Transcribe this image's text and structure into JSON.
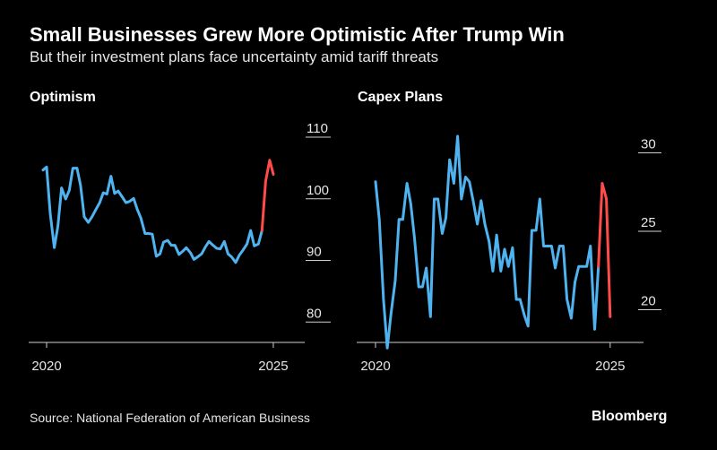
{
  "header": {
    "title": "Small Businesses Grew More Optimistic After Trump Win",
    "subtitle": "But their investment plans face uncertainty amid tariff threats"
  },
  "footer": {
    "source": "Source: National Federation of American Business",
    "brand": "Bloomberg"
  },
  "colors": {
    "before": "#4fb3f0",
    "after": "#ff4b4b",
    "axis": "#cfcfcf"
  },
  "chart_data": [
    {
      "type": "line",
      "title": "Optimism",
      "xlabel": "",
      "ylabel": "",
      "xlim": [
        2020.0,
        2025.08
      ],
      "ylim": [
        78,
        110
      ],
      "yticks": [
        110,
        100,
        90,
        80
      ],
      "xticks": [
        "2020",
        "2025"
      ],
      "grid": false,
      "series": [
        {
          "color": "before",
          "values": [
            [
              2019.92,
              103.5
            ],
            [
              2020.0,
              104.0
            ],
            [
              2020.08,
              96.5
            ],
            [
              2020.17,
              90.9
            ],
            [
              2020.25,
              94.4
            ],
            [
              2020.33,
              100.6
            ],
            [
              2020.42,
              98.8
            ],
            [
              2020.5,
              100.2
            ],
            [
              2020.58,
              103.8
            ],
            [
              2020.67,
              103.8
            ],
            [
              2020.75,
              101.0
            ],
            [
              2020.83,
              95.9
            ],
            [
              2020.92,
              95.0
            ],
            [
              2021.0,
              95.9
            ],
            [
              2021.08,
              97.0
            ],
            [
              2021.17,
              98.2
            ],
            [
              2021.25,
              99.8
            ],
            [
              2021.33,
              99.6
            ],
            [
              2021.42,
              102.5
            ],
            [
              2021.5,
              99.7
            ],
            [
              2021.58,
              100.1
            ],
            [
              2021.67,
              99.1
            ],
            [
              2021.75,
              98.2
            ],
            [
              2021.83,
              98.4
            ],
            [
              2021.92,
              98.9
            ],
            [
              2022.0,
              97.1
            ],
            [
              2022.08,
              95.7
            ],
            [
              2022.17,
              93.2
            ],
            [
              2022.25,
              93.2
            ],
            [
              2022.33,
              93.1
            ],
            [
              2022.42,
              89.5
            ],
            [
              2022.5,
              89.9
            ],
            [
              2022.58,
              91.8
            ],
            [
              2022.67,
              92.1
            ],
            [
              2022.75,
              91.3
            ],
            [
              2022.83,
              91.3
            ],
            [
              2022.92,
              89.8
            ],
            [
              2023.0,
              90.3
            ],
            [
              2023.08,
              90.9
            ],
            [
              2023.17,
              90.1
            ],
            [
              2023.25,
              89.0
            ],
            [
              2023.33,
              89.4
            ],
            [
              2023.42,
              89.9
            ],
            [
              2023.5,
              91.0
            ],
            [
              2023.58,
              91.9
            ],
            [
              2023.67,
              91.3
            ],
            [
              2023.75,
              90.8
            ],
            [
              2023.83,
              90.7
            ],
            [
              2023.92,
              91.9
            ],
            [
              2024.0,
              89.9
            ],
            [
              2024.08,
              89.4
            ],
            [
              2024.17,
              88.5
            ],
            [
              2024.25,
              89.7
            ],
            [
              2024.33,
              90.5
            ],
            [
              2024.42,
              91.5
            ],
            [
              2024.5,
              93.7
            ],
            [
              2024.58,
              91.2
            ],
            [
              2024.67,
              91.5
            ],
            [
              2024.75,
              93.7
            ]
          ]
        },
        {
          "color": "after",
          "values": [
            [
              2024.75,
              93.7
            ],
            [
              2024.83,
              101.7
            ],
            [
              2024.92,
              105.1
            ],
            [
              2025.0,
              102.8
            ]
          ]
        }
      ]
    },
    {
      "type": "line",
      "title": "Capex Plans",
      "xlabel": "",
      "ylabel": "",
      "xlim": [
        2020.0,
        2025.08
      ],
      "ylim": [
        17,
        31
      ],
      "yticks": [
        30,
        25,
        20
      ],
      "xticks": [
        "2020",
        "2025"
      ],
      "grid": false,
      "series": [
        {
          "color": "before",
          "values": [
            [
              2020.0,
              27.7
            ],
            [
              2020.08,
              25.3
            ],
            [
              2020.17,
              20.2
            ],
            [
              2020.25,
              17.1
            ],
            [
              2020.33,
              19.3
            ],
            [
              2020.42,
              21.4
            ],
            [
              2020.5,
              25.3
            ],
            [
              2020.58,
              25.3
            ],
            [
              2020.67,
              27.6
            ],
            [
              2020.75,
              26.3
            ],
            [
              2020.83,
              24.1
            ],
            [
              2020.92,
              21.0
            ],
            [
              2021.0,
              21.0
            ],
            [
              2021.08,
              22.2
            ],
            [
              2021.17,
              19.1
            ],
            [
              2021.25,
              26.6
            ],
            [
              2021.33,
              26.6
            ],
            [
              2021.42,
              24.4
            ],
            [
              2021.5,
              25.4
            ],
            [
              2021.58,
              29.1
            ],
            [
              2021.67,
              27.6
            ],
            [
              2021.75,
              30.6
            ],
            [
              2021.83,
              26.6
            ],
            [
              2021.92,
              28.0
            ],
            [
              2022.0,
              27.7
            ],
            [
              2022.08,
              26.5
            ],
            [
              2022.17,
              25.0
            ],
            [
              2022.25,
              26.5
            ],
            [
              2022.33,
              25.0
            ],
            [
              2022.42,
              23.9
            ],
            [
              2022.5,
              22.0
            ],
            [
              2022.58,
              24.3
            ],
            [
              2022.67,
              22.0
            ],
            [
              2022.75,
              23.4
            ],
            [
              2022.83,
              22.3
            ],
            [
              2022.92,
              23.5
            ],
            [
              2023.0,
              20.2
            ],
            [
              2023.08,
              20.2
            ],
            [
              2023.17,
              19.2
            ],
            [
              2023.25,
              18.5
            ],
            [
              2023.33,
              24.6
            ],
            [
              2023.42,
              24.6
            ],
            [
              2023.5,
              26.6
            ],
            [
              2023.58,
              23.6
            ],
            [
              2023.67,
              23.6
            ],
            [
              2023.75,
              23.6
            ],
            [
              2023.83,
              22.2
            ],
            [
              2023.92,
              23.6
            ],
            [
              2024.0,
              23.6
            ],
            [
              2024.08,
              20.2
            ],
            [
              2024.17,
              19.0
            ],
            [
              2024.25,
              21.3
            ],
            [
              2024.33,
              22.3
            ],
            [
              2024.42,
              22.3
            ],
            [
              2024.5,
              22.3
            ],
            [
              2024.58,
              23.6
            ],
            [
              2024.67,
              18.3
            ],
            [
              2024.75,
              22.3
            ]
          ]
        },
        {
          "color": "after",
          "values": [
            [
              2024.75,
              22.3
            ],
            [
              2024.83,
              27.6
            ],
            [
              2024.92,
              26.6
            ],
            [
              2025.0,
              19.1
            ]
          ]
        }
      ]
    }
  ]
}
